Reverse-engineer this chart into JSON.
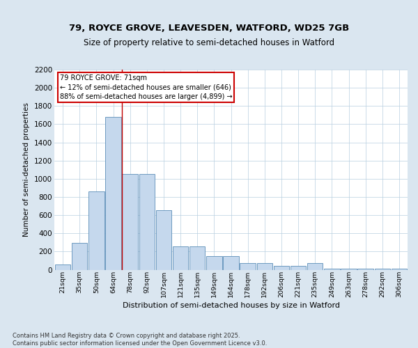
{
  "title1": "79, ROYCE GROVE, LEAVESDEN, WATFORD, WD25 7GB",
  "title2": "Size of property relative to semi-detached houses in Watford",
  "xlabel": "Distribution of semi-detached houses by size in Watford",
  "ylabel": "Number of semi-detached properties",
  "categories": [
    "21sqm",
    "35sqm",
    "50sqm",
    "64sqm",
    "78sqm",
    "92sqm",
    "107sqm",
    "121sqm",
    "135sqm",
    "149sqm",
    "164sqm",
    "178sqm",
    "192sqm",
    "206sqm",
    "221sqm",
    "235sqm",
    "249sqm",
    "263sqm",
    "278sqm",
    "292sqm",
    "306sqm"
  ],
  "values": [
    55,
    295,
    860,
    1680,
    1055,
    1055,
    655,
    255,
    255,
    150,
    150,
    70,
    70,
    45,
    45,
    70,
    8,
    8,
    8,
    8,
    8
  ],
  "bar_color": "#c5d8ed",
  "bar_edge_color": "#5b8db8",
  "vline_color": "#c00000",
  "vline_x": 3.5,
  "annotation_box_text": "79 ROYCE GROVE: 71sqm\n← 12% of semi-detached houses are smaller (646)\n88% of semi-detached houses are larger (4,899) →",
  "ylim": [
    0,
    2200
  ],
  "yticks": [
    0,
    200,
    400,
    600,
    800,
    1000,
    1200,
    1400,
    1600,
    1800,
    2000,
    2200
  ],
  "footer": "Contains HM Land Registry data © Crown copyright and database right 2025.\nContains public sector information licensed under the Open Government Licence v3.0.",
  "bg_color": "#dae6f0",
  "plot_bg_color": "#ffffff",
  "grid_color": "#b8cfe0"
}
